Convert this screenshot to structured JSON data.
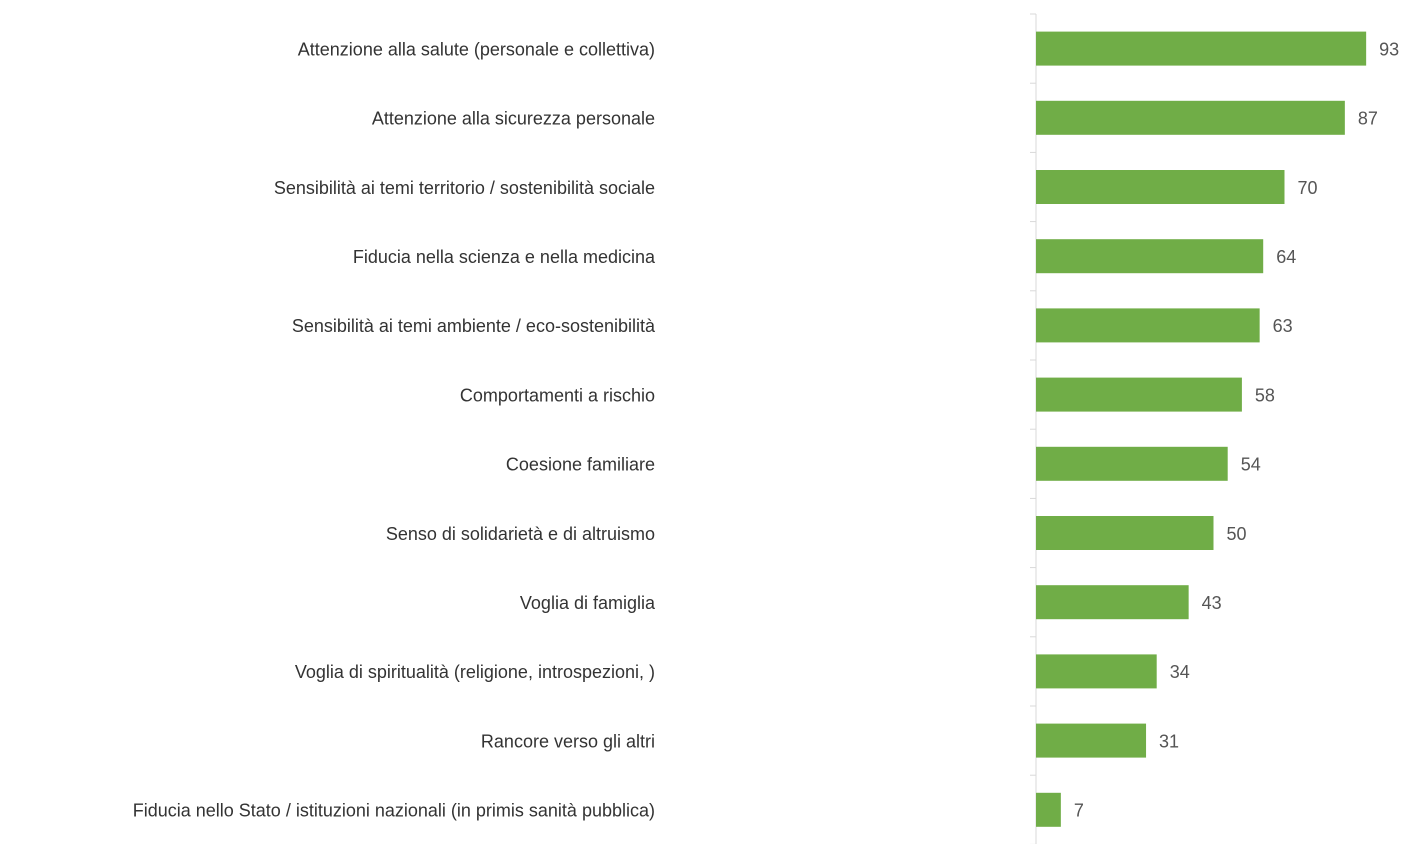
{
  "chart_data": {
    "type": "bar",
    "orientation": "horizontal",
    "categories": [
      "Attenzione alla salute (personale e collettiva)",
      "Attenzione alla sicurezza personale",
      "Sensibilità ai temi territorio / sostenibilità sociale",
      "Fiducia nella scienza e nella medicina",
      "Sensibilità ai temi ambiente / eco-sostenibilità",
      "Comportamenti a rischio",
      "Coesione familiare",
      "Senso di solidarietà e di altruismo",
      "Voglia di famiglia",
      "Voglia di spiritualità (religione, introspezioni, )",
      "Rancore verso gli altri",
      "Fiducia nello Stato / istituzioni nazionali (in primis sanità pubblica)"
    ],
    "values": [
      93,
      87,
      70,
      64,
      63,
      58,
      54,
      50,
      43,
      34,
      31,
      7
    ],
    "color": "#70ad47",
    "xlim": [
      0,
      100
    ]
  }
}
